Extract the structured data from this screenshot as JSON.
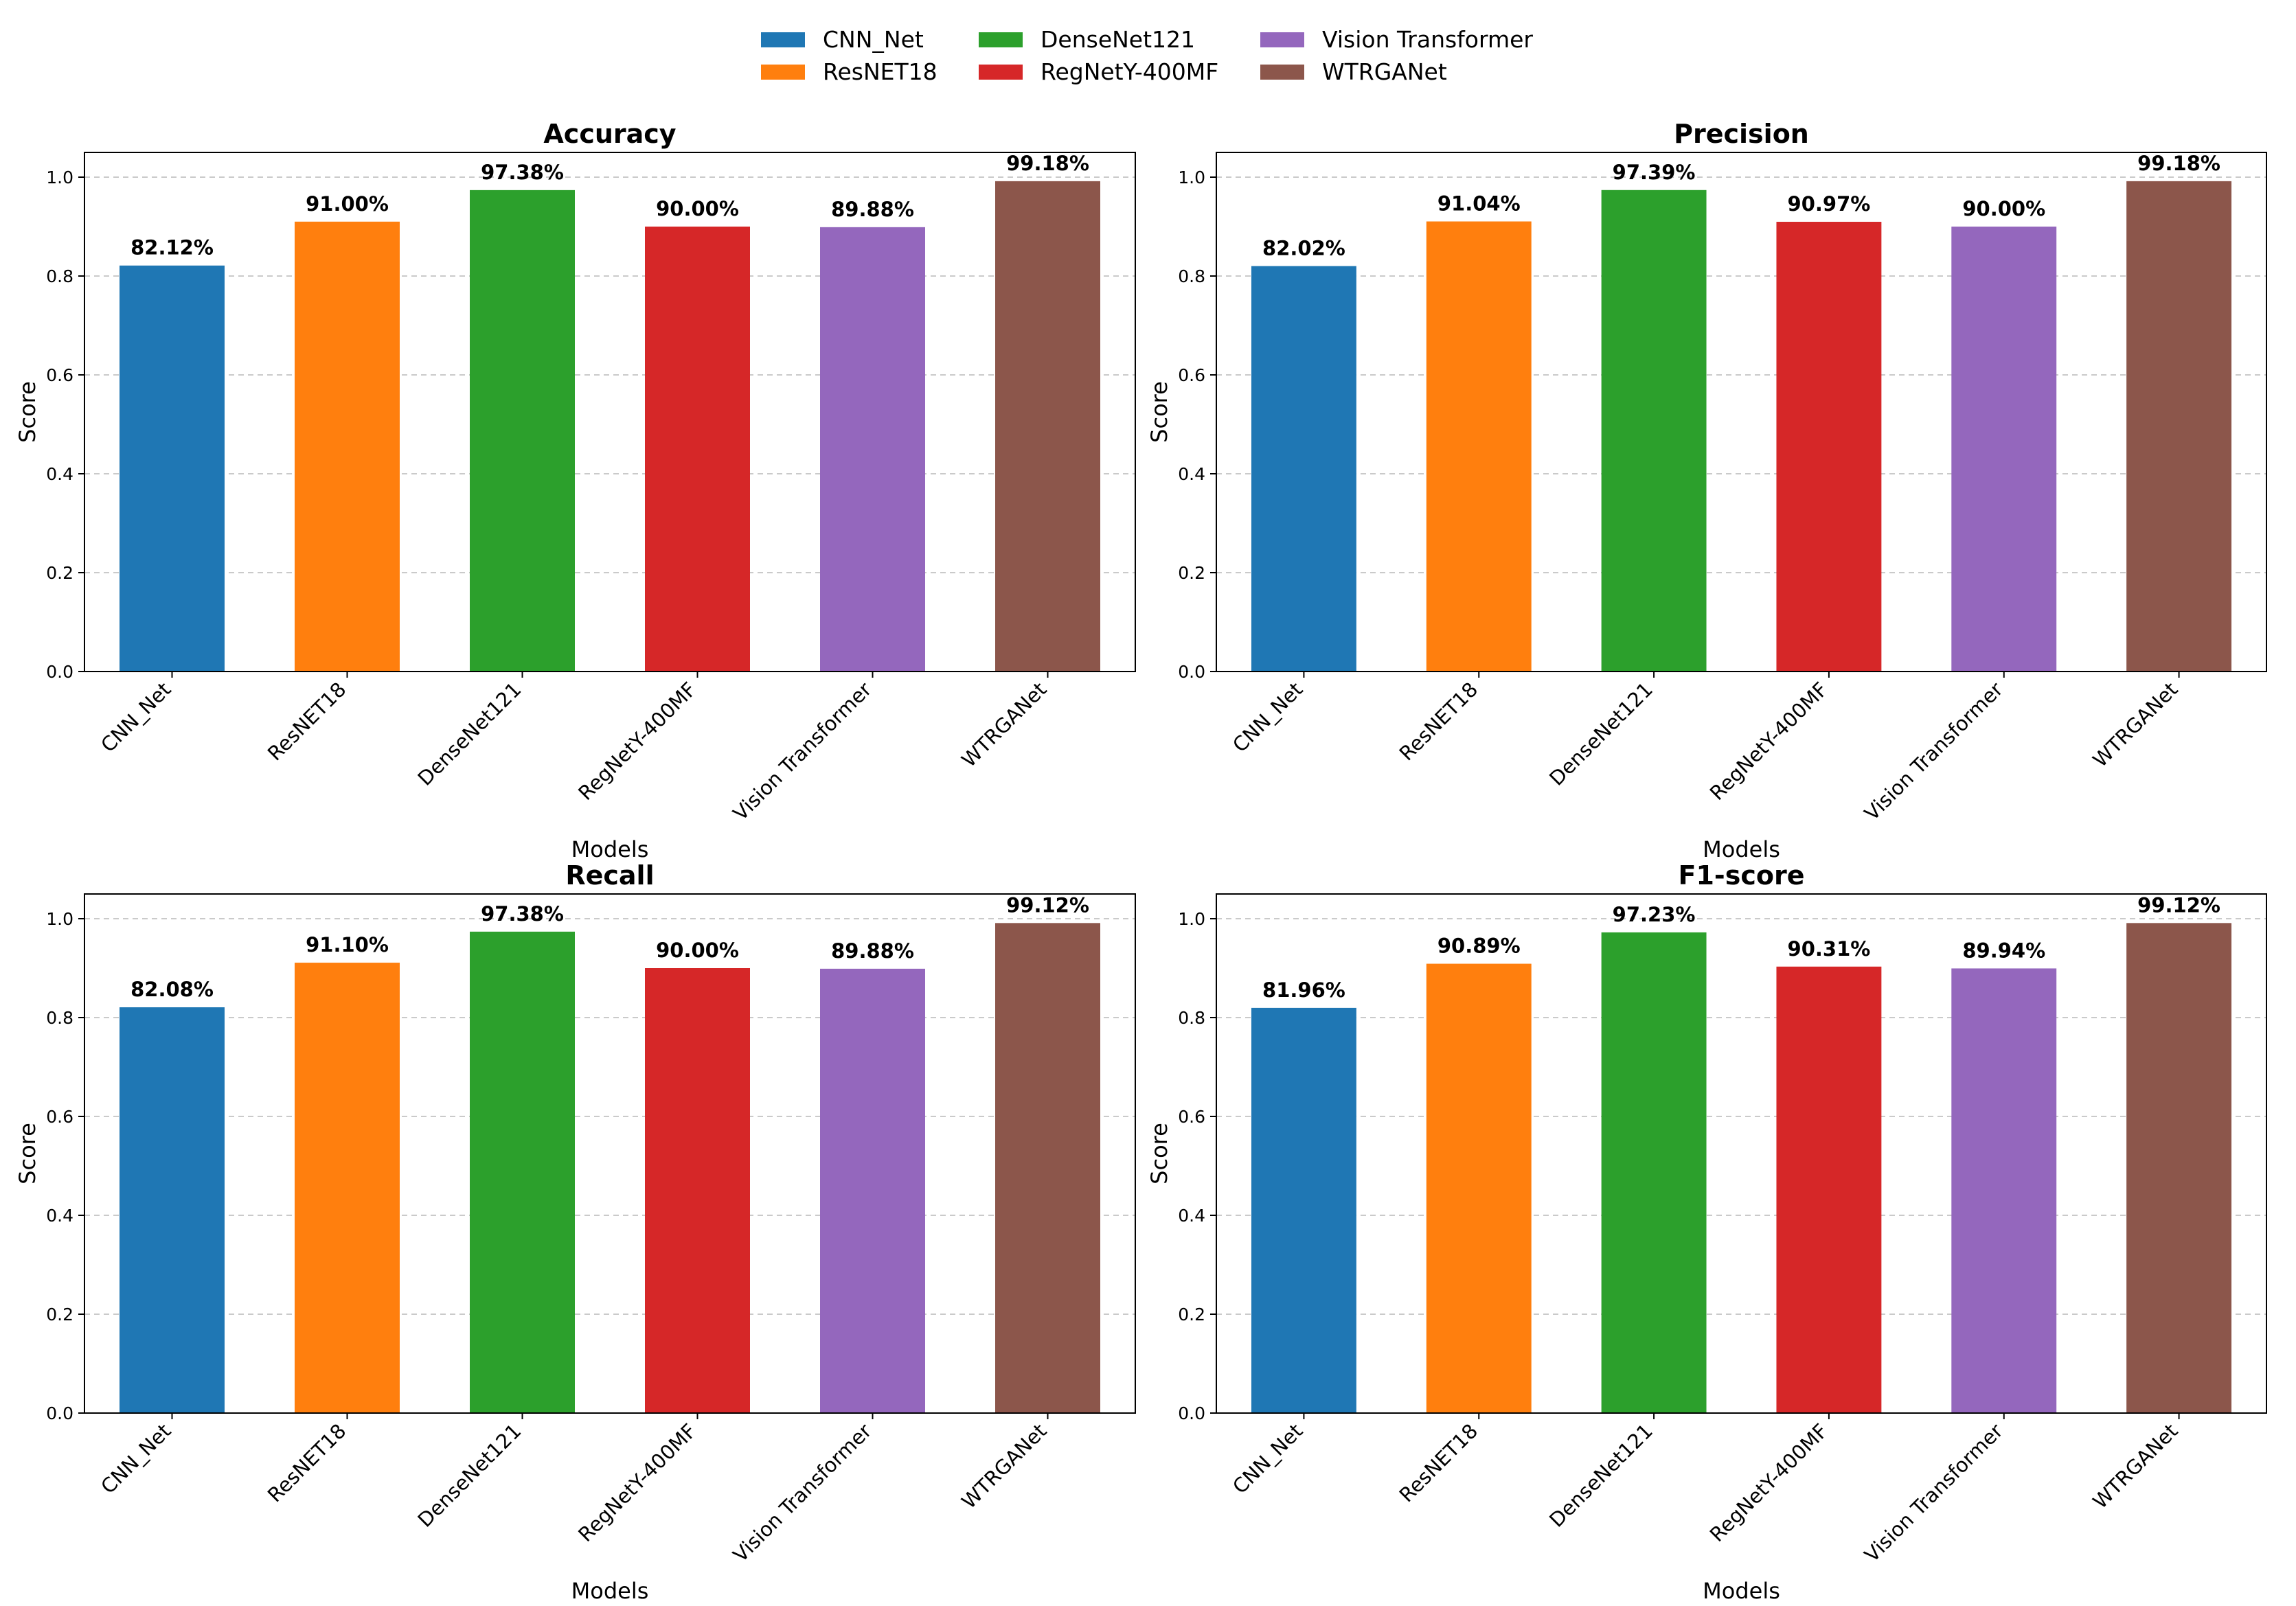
{
  "legend": {
    "placement": "top-center",
    "entries": [
      {
        "label": "CNN_Net",
        "color": "#1f77b4"
      },
      {
        "label": "ResNET18",
        "color": "#ff7f0e"
      },
      {
        "label": "DenseNet121",
        "color": "#2ca02c"
      },
      {
        "label": "RegNetY-400MF",
        "color": "#d62728"
      },
      {
        "label": "Vision Transformer",
        "color": "#9467bd"
      },
      {
        "label": "WTRGANet",
        "color": "#8c564b"
      }
    ]
  },
  "chart_data": [
    {
      "type": "bar",
      "title": "Accuracy",
      "xlabel": "Models",
      "ylabel": "Score",
      "categories": [
        "CNN_Net",
        "ResNET18",
        "DenseNet121",
        "RegNetY-400MF",
        "Vision Transformer",
        "WTRGANet"
      ],
      "values": [
        0.8212,
        0.91,
        0.9738,
        0.9,
        0.8988,
        0.9918
      ],
      "data_labels": [
        "82.12%",
        "91.00%",
        "97.38%",
        "90.00%",
        "89.88%",
        "99.18%"
      ],
      "yticks": [
        "0.0",
        "0.2",
        "0.4",
        "0.6",
        "0.8",
        "1.0"
      ],
      "ylim": [
        0,
        1.05
      ],
      "grid": "y-dashed"
    },
    {
      "type": "bar",
      "title": "Precision",
      "xlabel": "Models",
      "ylabel": "Score",
      "categories": [
        "CNN_Net",
        "ResNET18",
        "DenseNet121",
        "RegNetY-400MF",
        "Vision Transformer",
        "WTRGANet"
      ],
      "values": [
        0.8202,
        0.9104,
        0.9739,
        0.9097,
        0.9,
        0.9918
      ],
      "data_labels": [
        "82.02%",
        "91.04%",
        "97.39%",
        "90.97%",
        "90.00%",
        "99.18%"
      ],
      "yticks": [
        "0.0",
        "0.2",
        "0.4",
        "0.6",
        "0.8",
        "1.0"
      ],
      "ylim": [
        0,
        1.05
      ],
      "grid": "y-dashed"
    },
    {
      "type": "bar",
      "title": "Recall",
      "xlabel": "Models",
      "ylabel": "Score",
      "categories": [
        "CNN_Net",
        "ResNET18",
        "DenseNet121",
        "RegNetY-400MF",
        "Vision Transformer",
        "WTRGANet"
      ],
      "values": [
        0.8208,
        0.911,
        0.9738,
        0.9,
        0.8988,
        0.9912
      ],
      "data_labels": [
        "82.08%",
        "91.10%",
        "97.38%",
        "90.00%",
        "89.88%",
        "99.12%"
      ],
      "yticks": [
        "0.0",
        "0.2",
        "0.4",
        "0.6",
        "0.8",
        "1.0"
      ],
      "ylim": [
        0,
        1.05
      ],
      "grid": "y-dashed"
    },
    {
      "type": "bar",
      "title": "F1-score",
      "xlabel": "Models",
      "ylabel": "Score",
      "categories": [
        "CNN_Net",
        "ResNET18",
        "DenseNet121",
        "RegNetY-400MF",
        "Vision Transformer",
        "WTRGANet"
      ],
      "values": [
        0.8196,
        0.9089,
        0.9723,
        0.9031,
        0.8994,
        0.9912
      ],
      "data_labels": [
        "81.96%",
        "90.89%",
        "97.23%",
        "90.31%",
        "89.94%",
        "99.12%"
      ],
      "yticks": [
        "0.0",
        "0.2",
        "0.4",
        "0.6",
        "0.8",
        "1.0"
      ],
      "ylim": [
        0,
        1.05
      ],
      "grid": "y-dashed"
    }
  ]
}
